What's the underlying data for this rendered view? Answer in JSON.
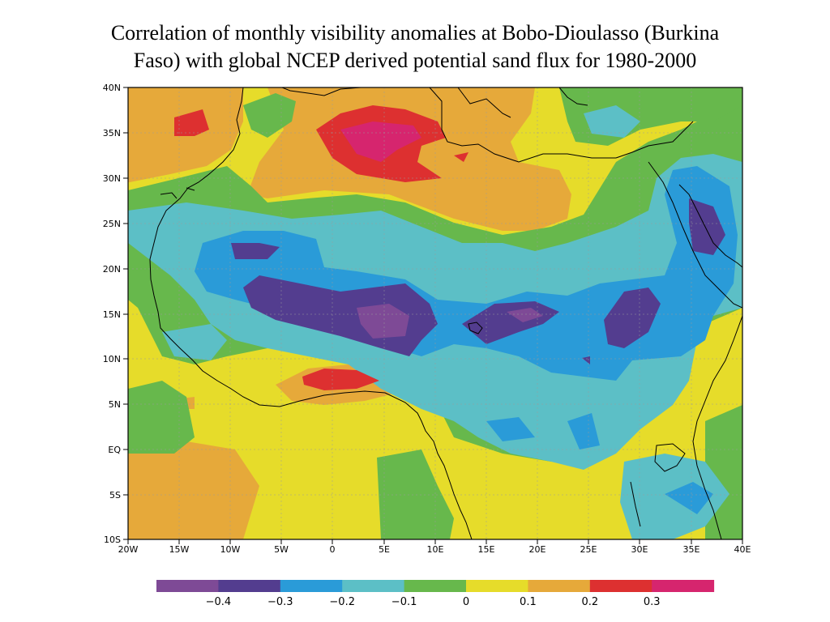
{
  "title": {
    "line1": "Correlation of monthly visibility anomalies at Bobo-Dioulasso (Burkina",
    "line2": "Faso) with global NCEP derived potential sand flux for 1980-2000"
  },
  "map": {
    "lon_ticks": [
      "20W",
      "15W",
      "10W",
      "5W",
      "0",
      "5E",
      "10E",
      "15E",
      "20E",
      "25E",
      "30E",
      "35E",
      "40E"
    ],
    "lat_ticks": [
      "40N",
      "35N",
      "30N",
      "25N",
      "20N",
      "15N",
      "10N",
      "5N",
      "EQ",
      "5S",
      "10S"
    ]
  },
  "colorbar": {
    "colors": [
      "#7e4a96",
      "#533d8f",
      "#2a9bd8",
      "#5cbfc6",
      "#67b84c",
      "#e6dc2a",
      "#e6a93a",
      "#dd3030",
      "#d6256e"
    ],
    "labels": [
      "−0.4",
      "−0.3",
      "−0.2",
      "−0.1",
      "0",
      "0.1",
      "0.2",
      "0.3"
    ]
  },
  "palette": {
    "lt_purple": "#7e4a96",
    "dk_purple": "#533d8f",
    "blue": "#2a9bd8",
    "teal": "#5cbfc6",
    "green": "#67b84c",
    "yellow": "#e6dc2a",
    "orange": "#e6a93a",
    "red": "#dd3030",
    "magenta": "#d6256e"
  }
}
